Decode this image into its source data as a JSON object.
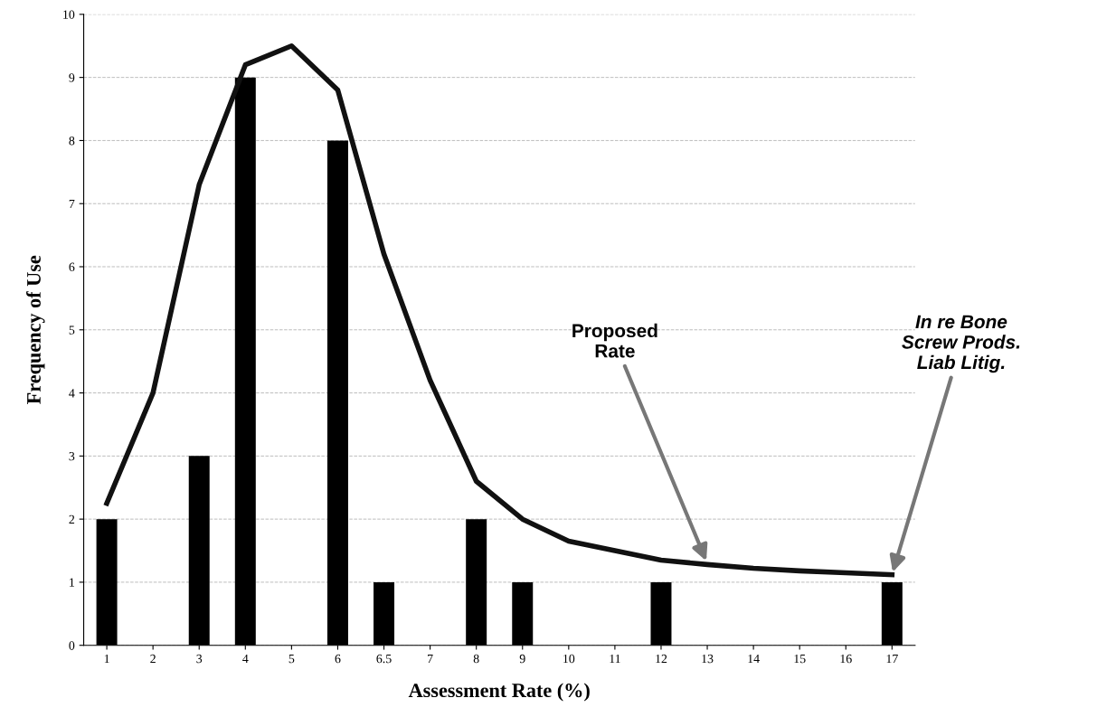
{
  "chart_data": {
    "type": "bar",
    "xlabel": "Assessment Rate (%)",
    "ylabel": "Frequency of Use",
    "categories": [
      "1",
      "2",
      "3",
      "4",
      "5",
      "6",
      "6.5",
      "7",
      "8",
      "9",
      "10",
      "11",
      "12",
      "13",
      "14",
      "15",
      "16",
      "17"
    ],
    "series": [
      {
        "color": "#000000",
        "values": [
          2,
          0,
          3,
          9,
          0,
          8,
          1,
          0,
          2,
          1,
          0,
          0,
          1,
          0,
          0,
          0,
          0,
          1
        ]
      },
      {
        "type": "line",
        "color": "#111111",
        "x": [
          "1",
          "2",
          "3",
          "4",
          "5",
          "6",
          "6.5",
          "7",
          "8",
          "9",
          "10",
          "11",
          "12",
          "13",
          "14",
          "15",
          "16",
          "17"
        ],
        "values": [
          2.25,
          4.0,
          7.3,
          9.2,
          9.5,
          8.8,
          6.2,
          4.2,
          2.6,
          2.0,
          1.65,
          1.5,
          1.35,
          1.28,
          1.22,
          1.18,
          1.15,
          1.12
        ]
      }
    ],
    "ylim": [
      0,
      10
    ],
    "yticks": [
      0,
      1,
      2,
      3,
      4,
      5,
      6,
      7,
      8,
      9,
      10
    ],
    "grid": "y",
    "legend": false,
    "annotations": [
      {
        "text": "Proposed\nRate",
        "x": "13",
        "y": 1.3
      },
      {
        "text": "In re Bone\nScrew Prods.\nLiab Litig.",
        "x": "17",
        "y": 1.12
      }
    ]
  }
}
